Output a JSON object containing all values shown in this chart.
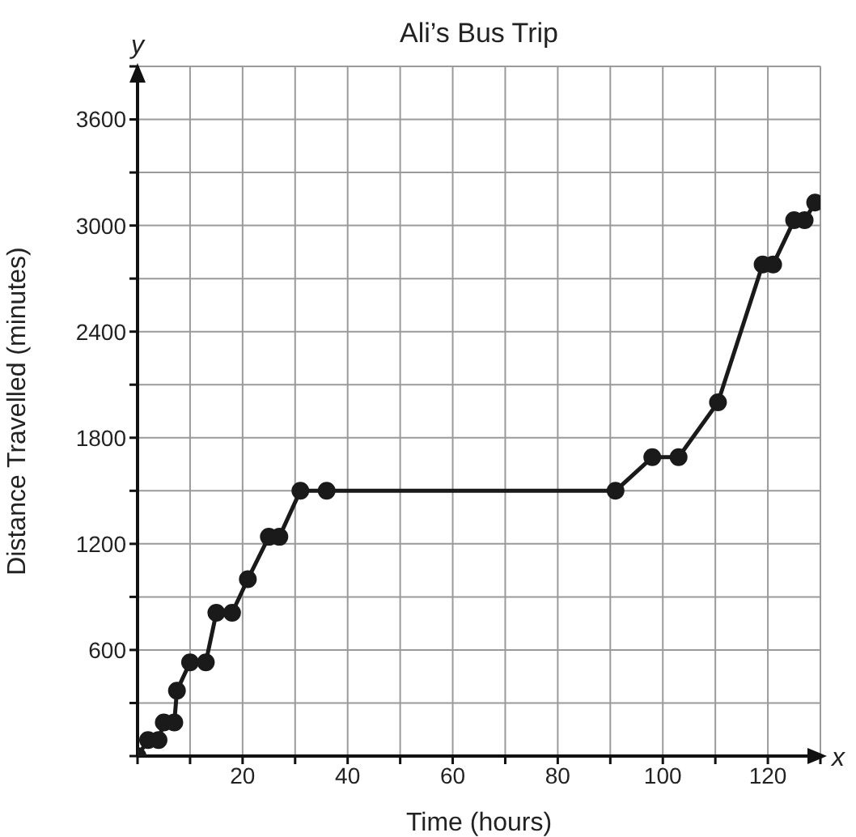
{
  "chart_data": {
    "type": "line",
    "title": "Ali’s Bus Trip",
    "xlabel": "Time (hours)",
    "ylabel": "Distance Travelled (minutes)",
    "annotations": [
      "x",
      "y"
    ],
    "x": [
      0,
      2,
      4,
      5,
      7,
      7.5,
      10,
      13,
      15,
      18,
      21,
      25,
      27,
      31,
      36,
      91,
      98,
      103,
      110.5,
      119,
      121,
      125,
      127,
      129
    ],
    "values": [
      0,
      90,
      90,
      190,
      190,
      370,
      530,
      530,
      810,
      810,
      1000,
      1240,
      1240,
      1500,
      1500,
      1500,
      1690,
      1690,
      2000,
      2780,
      2780,
      3030,
      3030,
      3130
    ],
    "color": "#1a1a1a",
    "marker": "circle",
    "line_style": "solid",
    "grid": true,
    "xlim": [
      0,
      130
    ],
    "xticks": [
      {
        "value": 0,
        "label": null
      },
      {
        "value": 10,
        "label": null
      },
      20,
      {
        "value": 30,
        "label": null
      },
      40,
      {
        "value": 50,
        "label": null
      },
      60,
      {
        "value": 70,
        "label": null
      },
      80,
      {
        "value": 90,
        "label": null
      },
      100,
      {
        "value": 110,
        "label": null
      },
      120,
      {
        "value": 130,
        "label": null
      }
    ],
    "ylim": [
      0,
      3900
    ],
    "yticks": [
      {
        "value": 0,
        "label": null
      },
      {
        "value": 300,
        "label": null
      },
      600,
      {
        "value": 900,
        "label": null
      },
      1200,
      {
        "value": 1500,
        "label": null
      },
      1800,
      {
        "value": 2100,
        "label": null
      },
      2400,
      {
        "value": 2700,
        "label": null
      },
      3000,
      {
        "value": 3300,
        "label": null
      },
      3600,
      {
        "value": 3900,
        "label": null
      }
    ]
  }
}
